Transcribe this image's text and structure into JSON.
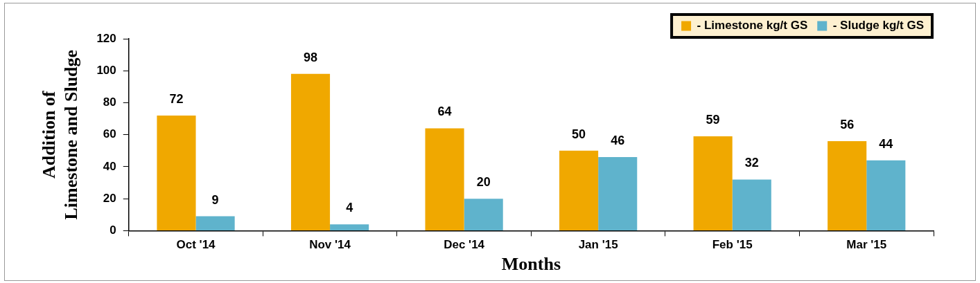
{
  "chart_data": {
    "type": "bar",
    "xlabel": "Months",
    "ylabel": "Addition of\nLimestone and Sludge",
    "categories": [
      "Oct '14",
      "Nov '14",
      "Dec '14",
      "Jan '15",
      "Feb '15",
      "Mar '15"
    ],
    "series": [
      {
        "name": "- Limestone kg/t GS",
        "color": "#f0a800",
        "values": [
          72,
          98,
          64,
          50,
          59,
          56
        ]
      },
      {
        "name": "- Sludge kg/t GS",
        "color": "#5fb3cc",
        "values": [
          9,
          4,
          20,
          46,
          32,
          44
        ]
      }
    ],
    "ylim": [
      0,
      120
    ],
    "yticks": [
      0,
      20,
      40,
      60,
      80,
      100,
      120
    ],
    "data_labels": true,
    "grid": false,
    "legend": "top right"
  }
}
